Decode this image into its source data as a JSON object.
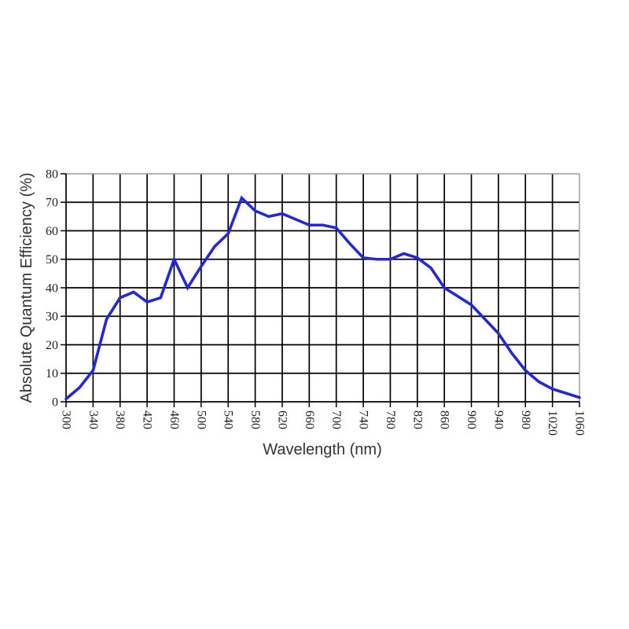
{
  "chart_data": {
    "type": "line",
    "title": "",
    "xlabel": "Wavelength (nm)",
    "ylabel": "Absolute Quantum Efficiency (%)",
    "x": [
      300,
      320,
      340,
      360,
      380,
      400,
      420,
      440,
      460,
      480,
      500,
      520,
      540,
      560,
      580,
      600,
      620,
      640,
      660,
      680,
      700,
      720,
      740,
      760,
      780,
      800,
      820,
      840,
      860,
      880,
      900,
      920,
      940,
      960,
      980,
      1000,
      1020,
      1040,
      1060
    ],
    "series": [
      {
        "name": "Absolute Quantum Efficiency",
        "values": [
          1,
          5,
          11,
          29,
          36.5,
          38.5,
          35,
          36.5,
          50,
          40,
          47.5,
          54.5,
          59,
          71.5,
          67,
          65,
          66,
          64,
          62,
          62,
          61,
          55.5,
          50.5,
          50,
          50,
          52,
          50.5,
          47,
          40,
          37,
          34,
          29,
          24,
          17,
          11,
          7,
          4.5,
          3,
          1.5
        ]
      }
    ],
    "xlim": [
      300,
      1060
    ],
    "ylim": [
      0,
      80
    ],
    "x_ticks": [
      300,
      340,
      380,
      420,
      460,
      500,
      540,
      580,
      620,
      660,
      700,
      740,
      780,
      820,
      860,
      900,
      940,
      980,
      1020,
      1060
    ],
    "y_ticks": [
      0,
      10,
      20,
      30,
      40,
      50,
      60,
      70,
      80
    ],
    "x_tick_rotation_deg": 90,
    "grid": true,
    "legend": "none",
    "line_color": "#2626d6",
    "grid_color": "#000000",
    "frame_color": "#9a9a9a",
    "axis_color": "#000000"
  }
}
